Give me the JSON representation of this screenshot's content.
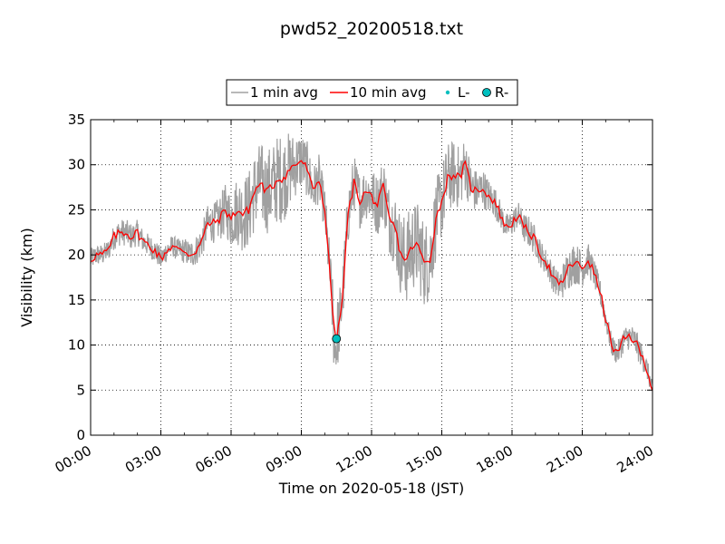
{
  "chart_data": {
    "type": "line",
    "title": "pwd52_20200518.txt",
    "xlabel": "Time on 2020-05-18 (JST)",
    "ylabel": "Visibility (km)",
    "x_units": "hours (JST)",
    "xlim": [
      0,
      24
    ],
    "ylim": [
      0,
      35
    ],
    "xticks": [
      0,
      3,
      6,
      9,
      12,
      15,
      18,
      21,
      24
    ],
    "xtick_labels": [
      "00:00",
      "03:00",
      "06:00",
      "09:00",
      "12:00",
      "15:00",
      "18:00",
      "21:00",
      "24:00"
    ],
    "yticks": [
      0,
      5,
      10,
      15,
      20,
      25,
      30,
      35
    ],
    "ytick_labels": [
      "0",
      "5",
      "10",
      "15",
      "20",
      "25",
      "30",
      "35"
    ],
    "grid": true,
    "legend_position": "top-center",
    "legend": [
      "1 min avg",
      "10 min avg",
      "L-",
      "R-"
    ],
    "series": [
      {
        "name": "1 min avg",
        "color": "#a0a0a0",
        "noise": [
          1.2,
          1.2,
          1.5,
          1.5,
          1.3,
          1.3,
          1.2,
          1.5,
          1.8,
          2.2,
          3.0,
          4.2,
          4.5,
          4.8,
          5.0,
          3.5,
          3.0,
          2.5,
          4.0,
          3.2,
          3.0,
          3.5,
          4.0,
          5.0,
          5.0,
          4.5,
          4.0,
          3.5,
          2.5,
          2.0,
          1.5,
          1.5,
          1.8,
          1.5,
          1.6,
          2.5,
          2.0,
          1.5,
          1.2,
          1.5,
          1.5,
          1.0
        ]
      },
      {
        "name": "10 min avg",
        "color": "#ff0000",
        "x": [
          0,
          0.25,
          0.5,
          0.75,
          1.0,
          1.25,
          1.5,
          1.75,
          2.0,
          2.25,
          2.5,
          2.75,
          3.0,
          3.25,
          3.5,
          3.75,
          4.0,
          4.25,
          4.5,
          4.75,
          5.0,
          5.25,
          5.5,
          5.75,
          6.0,
          6.25,
          6.5,
          6.75,
          7.0,
          7.25,
          7.5,
          7.75,
          8.0,
          8.25,
          8.5,
          8.75,
          9.0,
          9.25,
          9.5,
          9.75,
          10.0,
          10.25,
          10.4,
          10.5,
          10.6,
          10.75,
          11.0,
          11.25,
          11.5,
          11.75,
          12.0,
          12.25,
          12.5,
          12.75,
          13.0,
          13.25,
          13.5,
          13.75,
          14.0,
          14.25,
          14.5,
          14.75,
          15.0,
          15.25,
          15.5,
          15.75,
          16.0,
          16.25,
          16.5,
          16.75,
          17.0,
          17.25,
          17.5,
          17.75,
          18.0,
          18.25,
          18.5,
          18.75,
          19.0,
          19.25,
          19.5,
          19.75,
          20.0,
          20.25,
          20.5,
          20.75,
          21.0,
          21.25,
          21.5,
          21.75,
          22.0,
          22.25,
          22.5,
          22.75,
          23.0,
          23.25,
          23.5,
          23.75,
          24.0
        ],
        "y": [
          19.5,
          20.0,
          20.0,
          20.5,
          22.0,
          22.5,
          22.5,
          22.0,
          22.5,
          21.5,
          21.0,
          20.5,
          19.5,
          20.5,
          21.0,
          20.5,
          20.5,
          20.0,
          20.5,
          21.5,
          23.5,
          23.5,
          24.0,
          25.0,
          24.0,
          25.0,
          24.5,
          25.0,
          27.0,
          28.0,
          27.0,
          27.5,
          28.5,
          28.5,
          29.5,
          30.0,
          30.5,
          29.5,
          27.0,
          28.5,
          25.0,
          17.0,
          11.5,
          10.8,
          12.0,
          15.0,
          24.5,
          28.0,
          26.0,
          27.0,
          26.5,
          25.5,
          27.5,
          24.0,
          23.0,
          20.0,
          19.5,
          21.0,
          21.0,
          19.0,
          19.5,
          24.0,
          26.0,
          28.5,
          29.0,
          28.5,
          30.0,
          27.5,
          27.0,
          27.5,
          26.5,
          26.0,
          24.5,
          23.0,
          23.5,
          24.5,
          23.0,
          22.5,
          21.5,
          20.0,
          19.0,
          17.5,
          16.5,
          17.5,
          19.0,
          19.0,
          18.5,
          19.5,
          18.0,
          16.0,
          13.0,
          10.0,
          9.0,
          10.5,
          11.0,
          10.5,
          9.0,
          7.5,
          5.0
        ]
      },
      {
        "name": "L-",
        "color": "#00bfbf",
        "x": [],
        "y": []
      },
      {
        "name": "R-",
        "color": "#00bfbf",
        "x": [
          10.5
        ],
        "y": [
          10.7
        ]
      }
    ]
  }
}
